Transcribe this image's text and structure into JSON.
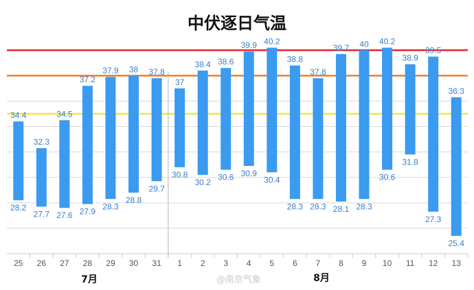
{
  "chart_data": {
    "type": "bar",
    "title": "中伏逐日气温",
    "categories": [
      "25",
      "26",
      "27",
      "28",
      "29",
      "30",
      "31",
      "1",
      "2",
      "3",
      "4",
      "5",
      "6",
      "7",
      "8",
      "9",
      "10",
      "11",
      "12",
      "13"
    ],
    "month_labels": [
      "7月",
      "8月"
    ],
    "series": [
      {
        "values": [
          34.4,
          32.3,
          34.5,
          37.2,
          37.9,
          38,
          37.8,
          37,
          38.4,
          38.6,
          39.9,
          40.2,
          38.8,
          37.8,
          39.7,
          40,
          40.2,
          38.9,
          39.5,
          36.3
        ]
      },
      {
        "values": [
          28.2,
          27.7,
          27.6,
          27.9,
          28.3,
          28.8,
          29.7,
          30.8,
          30.2,
          30.6,
          30.9,
          30.4,
          28.3,
          28.3,
          28.1,
          28.3,
          30.6,
          31.8,
          27.3,
          25.4
        ]
      }
    ],
    "reference_lines": [
      {
        "value": 40,
        "color": "#e8232a"
      },
      {
        "value": 38,
        "color": "#f07d2a"
      },
      {
        "value": 35,
        "color": "#f5e63a"
      }
    ],
    "ylim": [
      24,
      40.5
    ],
    "bar_color": "#3a9bf0",
    "label_color": "#3a7ec8",
    "watermark": "@南京气象"
  }
}
